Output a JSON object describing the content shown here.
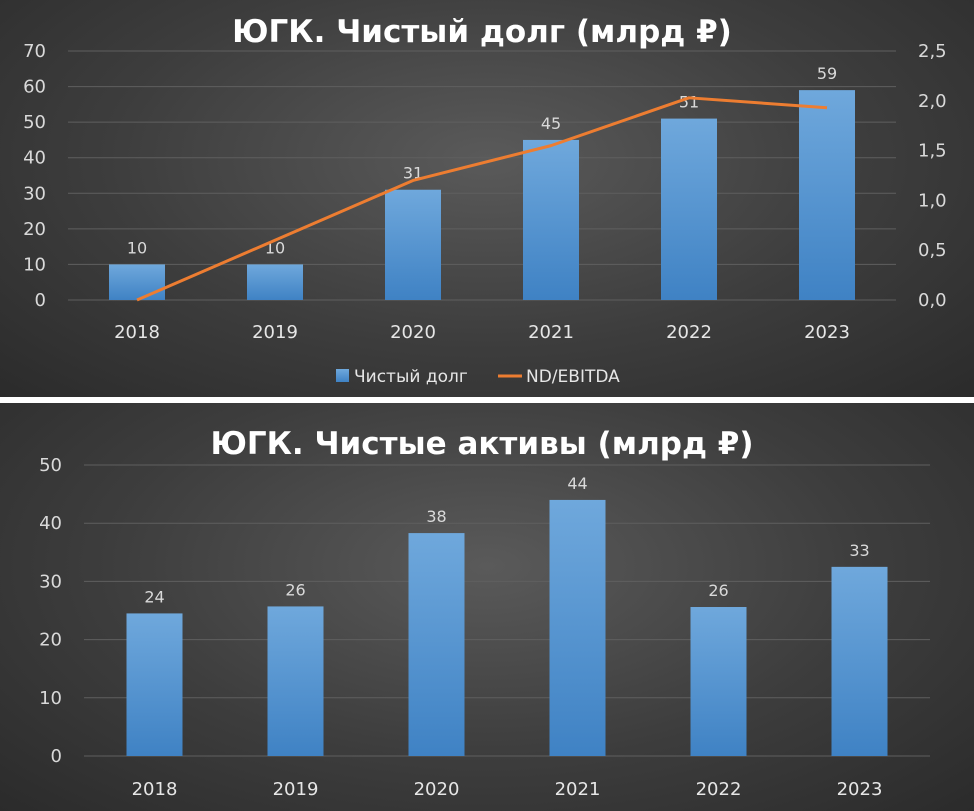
{
  "chart_data": [
    {
      "type": "bar",
      "title": "ЮГК. Чистый долг (млрд ₽)",
      "categories": [
        "2018",
        "2019",
        "2020",
        "2021",
        "2022",
        "2023"
      ],
      "ylim": [
        0,
        70
      ],
      "yticks": [
        "0",
        "10",
        "20",
        "30",
        "40",
        "50",
        "60",
        "70"
      ],
      "y2lim": [
        0,
        2.5
      ],
      "y2ticks": [
        "0,0",
        "0,5",
        "1,0",
        "1,5",
        "2,0",
        "2,5"
      ],
      "grid": true,
      "legend_position": "bottom",
      "series": [
        {
          "name": "Чистый долг",
          "type": "bar",
          "axis": "left",
          "values": [
            10,
            10,
            31,
            45,
            51,
            59
          ],
          "labels": [
            "10",
            "10",
            "31",
            "45",
            "51",
            "59"
          ],
          "color": "#5b9bd5"
        },
        {
          "name": "ND/EBITDA",
          "type": "line",
          "axis": "right",
          "values": [
            0.0,
            0.6,
            1.2,
            1.55,
            2.03,
            1.93
          ],
          "color": "#ed7d31"
        }
      ]
    },
    {
      "type": "bar",
      "title": "ЮГК. Чистые активы (млрд ₽)",
      "categories": [
        "2018",
        "2019",
        "2020",
        "2021",
        "2022",
        "2023"
      ],
      "ylim": [
        0,
        50
      ],
      "yticks": [
        "0",
        "10",
        "20",
        "30",
        "40",
        "50"
      ],
      "grid": true,
      "series": [
        {
          "name": "",
          "type": "bar",
          "axis": "left",
          "values": [
            24.5,
            25.7,
            38.3,
            44,
            25.6,
            32.5
          ],
          "labels": [
            "24",
            "26",
            "38",
            "44",
            "26",
            "33"
          ],
          "color": "#5b9bd5"
        }
      ]
    }
  ]
}
